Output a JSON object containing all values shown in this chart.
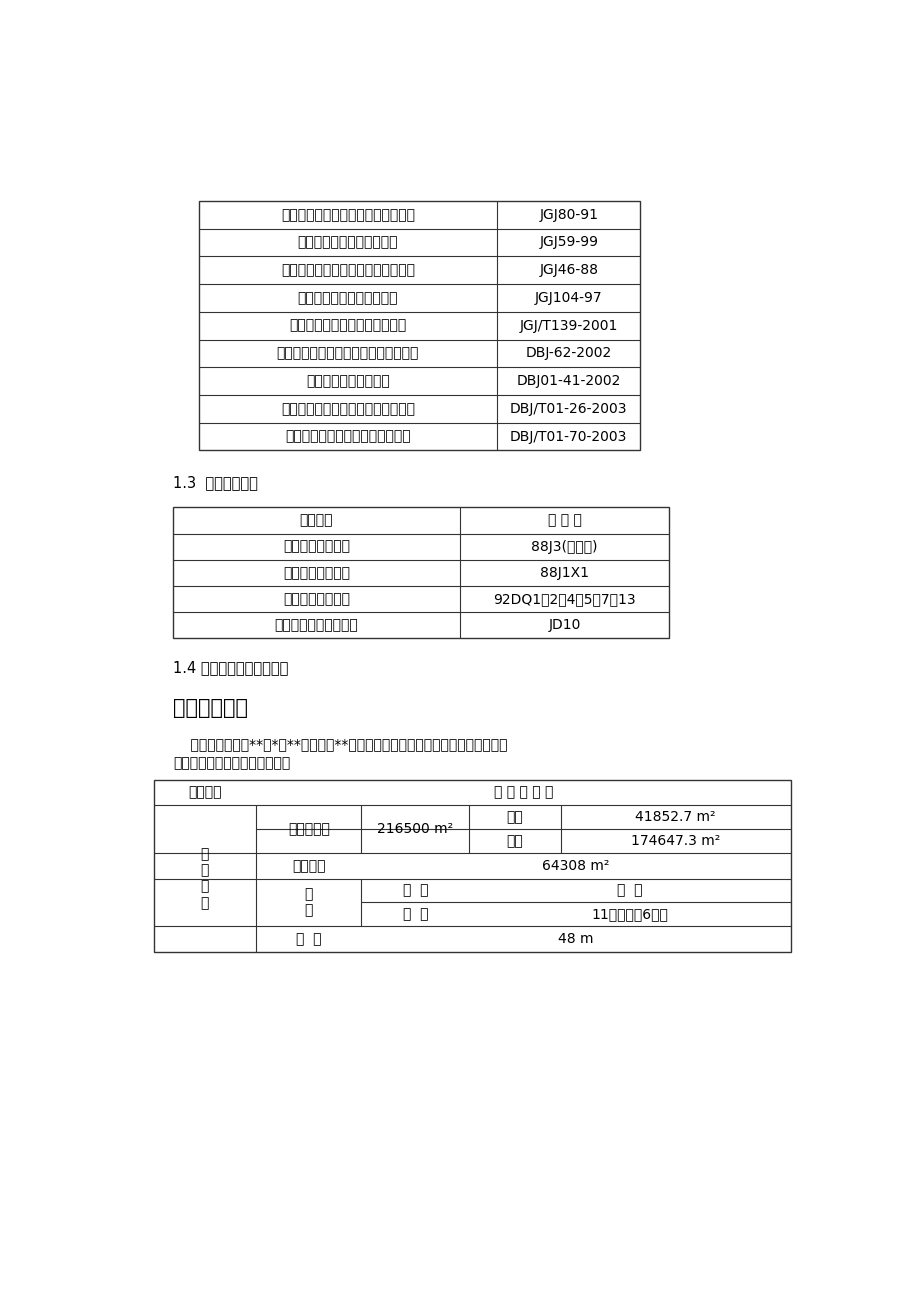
{
  "bg_color": "#ffffff",
  "text_color": "#000000",
  "table1_rows": [
    [
      "《建筑施工高处作业安全技术规范》",
      "JGJ80-91"
    ],
    [
      "《建筑施工安全检查标准》",
      "JGJ59-99"
    ],
    [
      "《施工现场临时用电安全技术规范》",
      "JGJ46-88"
    ],
    [
      "《建筑工程冬期施工规程》",
      "JGJ104-97"
    ],
    [
      "《玻璃幕墙工程质量检验标准》",
      "JGJ/T139-2001"
    ],
    [
      "《北京市建筑工程施工安全操作规程》",
      "DBJ-62-2002"
    ],
    [
      "《建设工程监理规程》",
      "DBJ01-41-2002"
    ],
    [
      "《建筑安装分项工程施工工艺规程》",
      "DBJ/T01-26-2003"
    ],
    [
      "《建筑长城杯工程质量评审标准》",
      "DBJ/T01-70-2003"
    ]
  ],
  "section13_title": "1.3  主要标准图集",
  "table2_header": [
    "名　　称",
    "标 准 号"
  ],
  "table2_rows": [
    [
      "建筑构造通用图集",
      "88J3(外装饰)"
    ],
    [
      "建筑构造通用图集",
      "88J1X1"
    ],
    [
      "建筑电气通用图集",
      "92DQ1、2、4、5、7～13"
    ],
    [
      "建筑电气安装工程图集",
      "JD10"
    ]
  ],
  "section14_title": "1.4 本工程的施工组织设计",
  "section2_title": "二、工程概况",
  "para_line1": "    本工程于海淠区**路*号**大学内。**东南区教学科研楼工程是集教学、办公、科",
  "para_line2": "研、会议为一体的综合性建筑。"
}
